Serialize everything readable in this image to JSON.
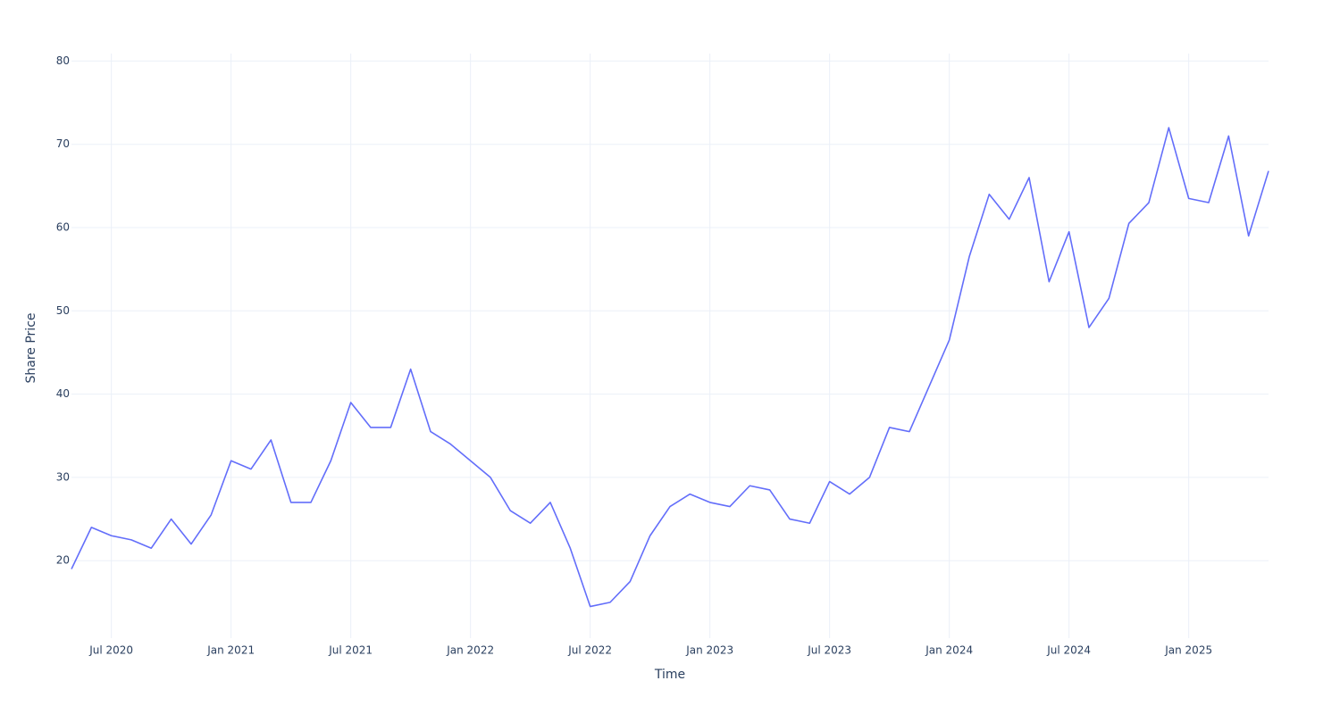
{
  "chart_data": {
    "type": "line",
    "x_label": "Time",
    "y_label": "Share Price",
    "x": [
      "2020-05",
      "2020-06",
      "2020-07",
      "2020-08",
      "2020-09",
      "2020-10",
      "2020-11",
      "2020-12",
      "2021-01",
      "2021-02",
      "2021-03",
      "2021-04",
      "2021-05",
      "2021-06",
      "2021-07",
      "2021-08",
      "2021-09",
      "2021-10",
      "2021-11",
      "2021-12",
      "2022-01",
      "2022-02",
      "2022-03",
      "2022-04",
      "2022-05",
      "2022-06",
      "2022-07",
      "2022-08",
      "2022-09",
      "2022-10",
      "2022-11",
      "2022-12",
      "2023-01",
      "2023-02",
      "2023-03",
      "2023-04",
      "2023-05",
      "2023-06",
      "2023-07",
      "2023-08",
      "2023-09",
      "2023-10",
      "2023-11",
      "2023-12",
      "2024-01",
      "2024-02",
      "2024-03",
      "2024-04",
      "2024-05",
      "2024-06",
      "2024-07",
      "2024-08",
      "2024-09",
      "2024-10",
      "2024-11",
      "2024-12",
      "2025-01",
      "2025-02",
      "2025-03",
      "2025-04",
      "2025-05"
    ],
    "series": [
      {
        "color": "#636efa",
        "values": [
          19,
          24,
          23,
          22.5,
          21.5,
          25,
          22,
          25.5,
          32,
          31,
          34.5,
          27,
          27,
          32,
          39,
          36,
          36,
          43,
          35.5,
          34,
          32,
          30,
          26,
          24.5,
          27,
          21.5,
          14.5,
          15,
          17.5,
          23,
          26.5,
          28,
          27,
          26.5,
          29,
          28.5,
          25,
          24.5,
          29.5,
          28,
          30,
          36,
          35.5,
          41,
          46.5,
          56.5,
          64,
          61,
          66,
          53.5,
          59.5,
          48,
          51.5,
          60.5,
          63,
          72,
          63.5,
          63,
          71,
          59,
          66.8
        ]
      }
    ],
    "xlim": [
      "2020-05",
      "2025-05"
    ],
    "xticks": [
      {
        "value": "2020-07",
        "label": "Jul 2020"
      },
      {
        "value": "2021-01",
        "label": "Jan 2021"
      },
      {
        "value": "2021-07",
        "label": "Jul 2021"
      },
      {
        "value": "2022-01",
        "label": "Jan 2022"
      },
      {
        "value": "2022-07",
        "label": "Jul 2022"
      },
      {
        "value": "2023-01",
        "label": "Jan 2023"
      },
      {
        "value": "2023-07",
        "label": "Jul 2023"
      },
      {
        "value": "2024-01",
        "label": "Jan 2024"
      },
      {
        "value": "2024-07",
        "label": "Jul 2024"
      },
      {
        "value": "2025-01",
        "label": "Jan 2025"
      }
    ],
    "ylim": [
      10.7,
      80.9
    ],
    "yticks": [
      20,
      30,
      40,
      50,
      60,
      70,
      80
    ],
    "grid": true
  }
}
